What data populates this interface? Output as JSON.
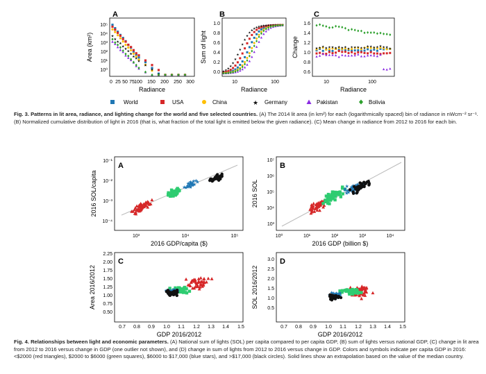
{
  "fig3": {
    "panels": [
      {
        "letter": "A",
        "ylabel": "Area (km²)",
        "xlabel": "Radiance",
        "xticks": [
          "0",
          "25",
          "50",
          "75",
          "100",
          "150",
          "200",
          "250",
          "300"
        ],
        "yticks": [
          "10⁵",
          "10⁴",
          "10³",
          "10²",
          "10¹",
          "10⁰"
        ]
      },
      {
        "letter": "B",
        "ylabel": "Sum of light",
        "xlabel": "Radiance",
        "xticks": [
          "10",
          "100"
        ],
        "yticks": [
          "1.0",
          "0.8",
          "0.6",
          "0.4",
          "0.2",
          "0.0"
        ]
      },
      {
        "letter": "C",
        "ylabel": "Change",
        "xlabel": "Radiance",
        "xticks": [
          "10",
          "100"
        ],
        "yticks": [
          "1.6",
          "1.4",
          "1.2",
          "1.0",
          "0.8",
          "0.6"
        ]
      }
    ],
    "legend": [
      {
        "label": "World",
        "color": "#1f77b4",
        "marker": "square"
      },
      {
        "label": "USA",
        "color": "#d62728",
        "marker": "square"
      },
      {
        "label": "China",
        "color": "#ffbf00",
        "marker": "circle"
      },
      {
        "label": "Germany",
        "color": "#111111",
        "marker": "star"
      },
      {
        "label": "Pakistan",
        "color": "#8a2be2",
        "marker": "triangle"
      },
      {
        "label": "Bolivia",
        "color": "#2ca02c",
        "marker": "diamond"
      }
    ],
    "caption": {
      "label": "Fig. 3.",
      "title": "Patterns in lit area, radiance, and lighting change for the world and five selected countries.",
      "text": "(A) The 2014 lit area (in km²) for each (logarithmically spaced) bin of radiance in nWcm⁻² sr⁻¹. (B) Normalized cumulative distribution of light in 2016 (that is, what fraction of the total light is emitted below the given radiance). (C) Mean change in radiance from 2012 to 2016 for each bin."
    }
  },
  "fig4": {
    "panels": [
      {
        "letter": "A",
        "ylabel": "2016 SOL/capita",
        "xlabel": "2016 GDP/capita ($)",
        "xticks": [
          "10³",
          "10⁴",
          "10⁵"
        ],
        "yticks": [
          "10⁻¹",
          "10⁻²",
          "10⁻³",
          "10⁻⁴"
        ]
      },
      {
        "letter": "B",
        "ylabel": "2016 SOL",
        "xlabel": "2016 GDP (billion $)",
        "xticks": [
          "10⁰",
          "10¹",
          "10²",
          "10³",
          "10⁴"
        ],
        "yticks": [
          "10⁷",
          "10⁶",
          "10⁵",
          "10⁴",
          "10³"
        ]
      },
      {
        "letter": "C",
        "ylabel": "Area 2016/2012",
        "xlabel": "GDP 2016/2012",
        "xticks": [
          "0.7",
          "0.8",
          "0.9",
          "1.0",
          "1.1",
          "1.2",
          "1.3",
          "1.4",
          "1.5"
        ],
        "yticks": [
          "2.25",
          "2.00",
          "1.75",
          "1.50",
          "1.25",
          "1.00",
          "0.75",
          "0.50"
        ]
      },
      {
        "letter": "D",
        "ylabel": "SOL 2016/2012",
        "xlabel": "GDP 2016/2012",
        "xticks": [
          "0.7",
          "0.8",
          "0.9",
          "1.0",
          "1.1",
          "1.2",
          "1.3",
          "1.4",
          "1.5"
        ],
        "yticks": [
          "3.0",
          "2.5",
          "2.0",
          "1.5",
          "1.0",
          "0.5"
        ]
      }
    ],
    "caption": {
      "label": "Fig. 4.",
      "title": "Relationships between light and economic parameters.",
      "text": "(A) National sum of lights (SOL) per capita compared to per capita GDP, (B) sum of lights versus national GDP, (C) change in lit area from 2012 to 2016 versus change in GDP (one outlier not shown), and (D) change in sum of lights from 2012 to 2016 versus change in GDP. Colors and symbols indicate per capita GDP in 2016: <$2000 (red triangles), $2000 to $6000 (green squares), $6000 to $17,000 (blue stars), and >$17,000 (black circles). Solid lines show an extrapolation based on the value of the median country."
    },
    "colors": {
      "low": "#d62728",
      "lower_mid": "#2ecc71",
      "upper_mid": "#1f77b4",
      "high": "#111111"
    }
  }
}
